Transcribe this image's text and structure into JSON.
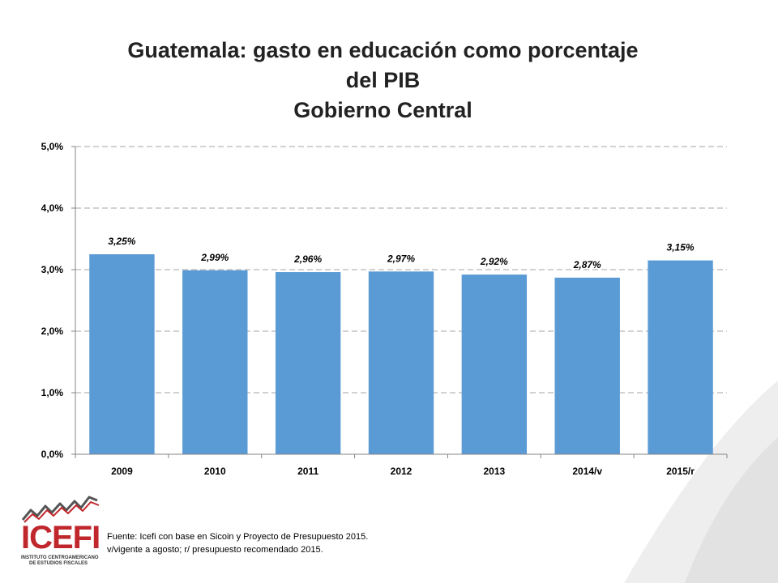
{
  "colors": {
    "bar": "#5b9bd5",
    "grid": "#a6a6a6",
    "axis": "#868686",
    "logo_red": "#c0272d"
  },
  "header": {
    "title_line1": "Guatemala: gasto en educación como porcentaje",
    "title_line2": "del PIB",
    "title_line3": "Gobierno Central"
  },
  "chart_data": {
    "type": "bar",
    "title": "Guatemala: gasto en educación como porcentaje del PIB Gobierno Central",
    "categories": [
      "2009",
      "2010",
      "2011",
      "2012",
      "2013",
      "2014/v",
      "2015/r"
    ],
    "values": [
      3.25,
      2.99,
      2.96,
      2.97,
      2.92,
      2.87,
      3.15
    ],
    "data_labels": [
      "3,25%",
      "2,99%",
      "2,96%",
      "2,97%",
      "2,92%",
      "2,87%",
      "3,15%"
    ],
    "yticks": [
      "0,0%",
      "1,0%",
      "2,0%",
      "3,0%",
      "4,0%",
      "5,0%"
    ],
    "ylim": [
      0,
      5
    ],
    "grid": true,
    "legend": "none",
    "xlabel": "",
    "ylabel": ""
  },
  "source": {
    "line1": "Fuente: Icefi con base en Sicoin y Proyecto de Presupuesto 2015.",
    "line2": "v/vigente a agosto; r/ presupuesto recomendado 2015."
  },
  "logo": {
    "word": "ICEFI",
    "sub1": "INSTITUTO CENTROAMERICANO",
    "sub2": "DE ESTUDIOS FISCALES"
  }
}
